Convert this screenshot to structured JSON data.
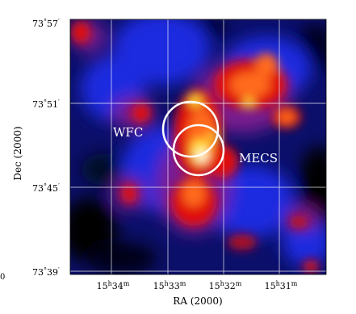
{
  "axes": {
    "x_title": "RA (2000)",
    "y_title": "Dec (2000)",
    "x_ticks": [
      {
        "h": "15",
        "hsup": "h",
        "m": "34",
        "msup": "m"
      },
      {
        "h": "15",
        "hsup": "h",
        "m": "33",
        "msup": "m"
      },
      {
        "h": "15",
        "hsup": "h",
        "m": "32",
        "msup": "m"
      },
      {
        "h": "15",
        "hsup": "h",
        "m": "31",
        "msup": "m"
      }
    ],
    "y_ticks": [
      {
        "deg": "73",
        "degsup": "°",
        "min": "57",
        "minsup": "′"
      },
      {
        "deg": "73",
        "degsup": "°",
        "min": "51",
        "minsup": "′"
      },
      {
        "deg": "73",
        "degsup": "°",
        "min": "45",
        "minsup": "′"
      },
      {
        "deg": "73",
        "degsup": "°",
        "min": "39",
        "minsup": "′"
      }
    ]
  },
  "annotations": {
    "wfc_label": "WFC",
    "mecs_label": "MECS",
    "stray_mark": "0"
  },
  "colors": {
    "background_deep": "#000000",
    "navy": "#0b0f6a",
    "blue": "#1f2be0",
    "purple": "#7a1f8f",
    "red": "#e01010",
    "orange": "#ff6a1a",
    "yellow": "#ffe23a",
    "white": "#ffffff"
  }
}
